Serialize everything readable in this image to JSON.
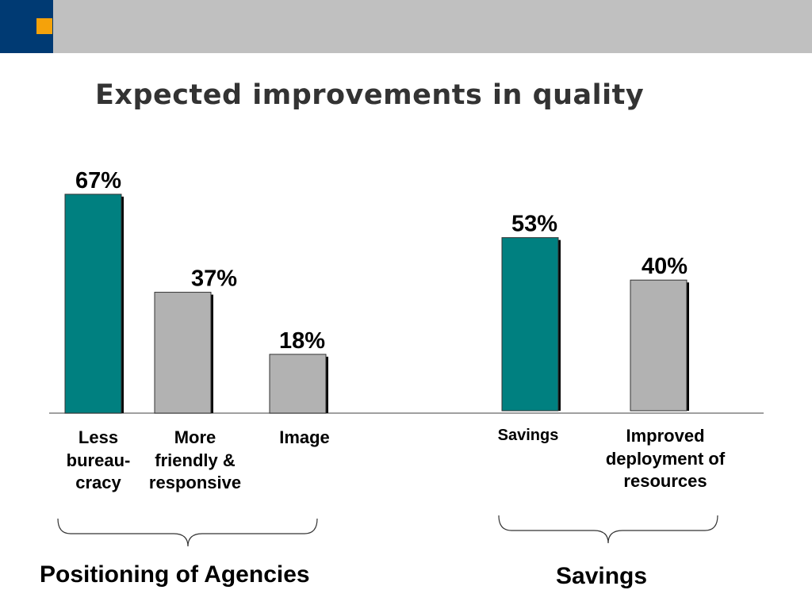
{
  "title": "Expected improvements in quality",
  "colors": {
    "header_band": "#c0c0c0",
    "corner_block": "#003a73",
    "corner_accent": "#f5a20a",
    "bar_teal": "#008080",
    "bar_gray": "#b2b2b2"
  },
  "chart_data": {
    "type": "bar",
    "categories": [
      "Less bureau-cracy",
      "More friendly & responsive",
      "Image",
      "Savings",
      "Improved deployment of resources"
    ],
    "category_display": [
      "Less\nbureau-\ncracy",
      "More\nfriendly &\nresponsive",
      "Image",
      "Savings",
      "Improved\ndeployment of\nresources"
    ],
    "values": [
      67,
      37,
      18,
      53,
      40
    ],
    "data_labels": [
      "67%",
      "37%",
      "18%",
      "53%",
      "40%"
    ],
    "bar_colors": [
      "teal",
      "gray",
      "gray",
      "teal",
      "gray"
    ],
    "groups": [
      {
        "label": "Positioning of Agencies",
        "categories": [
          0,
          1,
          2
        ]
      },
      {
        "label": "Savings",
        "categories": [
          3,
          4
        ]
      }
    ],
    "xlabel": "",
    "ylabel": "",
    "ylim": [
      0,
      100
    ],
    "grid": false,
    "legend": "none"
  }
}
